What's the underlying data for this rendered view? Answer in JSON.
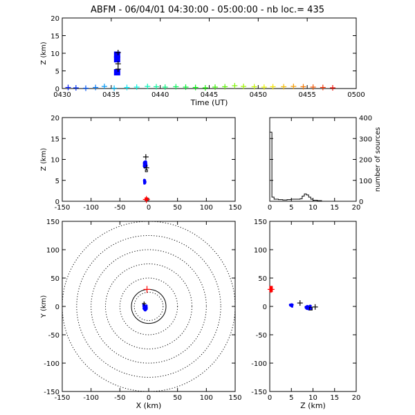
{
  "title": "ABFM - 06/04/01 04:30:00 - 05:00:00 - nb loc.=     435",
  "colors": {
    "early": "#0000ff",
    "late": "#ff0000",
    "axis": "#000000",
    "ring_dotted": "#000000"
  },
  "chart_data": [
    {
      "id": "time-height",
      "type": "scatter",
      "xlabel": "Time (UT)",
      "ylabel": "Z (km)",
      "xlim": [
        0,
        30
      ],
      "ylim": [
        0,
        20
      ],
      "x_ticks": [
        0,
        5,
        10,
        15,
        20,
        25,
        30
      ],
      "x_tick_labels": [
        "0430",
        "0435",
        "0440",
        "0445",
        "0450",
        "0455",
        "0500"
      ],
      "y_ticks": [
        0,
        5,
        10,
        15,
        20
      ],
      "squares": [
        {
          "t": 5.6,
          "z": 9.6
        },
        {
          "t": 5.6,
          "z": 8.3
        },
        {
          "t": 5.6,
          "z": 4.6
        }
      ],
      "crosses": [
        {
          "t": 5.7,
          "z": 10.2
        },
        {
          "t": 5.7,
          "z": 7.0
        },
        {
          "t": 5.7,
          "z": 5.5
        }
      ],
      "ground_t": [
        0.6,
        1.4,
        2.4,
        3.4,
        4.3,
        5.3,
        6.6,
        7.6,
        8.7,
        9.6,
        10.5,
        11.6,
        12.6,
        13.6,
        14.6,
        15.6,
        16.6,
        17.6,
        18.5,
        19.6,
        20.6,
        21.5,
        22.6,
        23.6,
        24.6,
        25.6,
        26.6,
        27.6
      ],
      "ground_z": [
        0.3,
        0.2,
        0.1,
        0.3,
        0.6,
        0.1,
        0.3,
        0.4,
        0.6,
        0.5,
        0.4,
        0.5,
        0.4,
        0.3,
        0.2,
        0.4,
        0.5,
        0.8,
        0.6,
        0.5,
        0.4,
        0.5,
        0.5,
        0.6,
        0.5,
        0.4,
        0.3,
        0.2
      ]
    },
    {
      "id": "x-z",
      "type": "scatter",
      "xlabel": "",
      "ylabel": "Z (km)",
      "xlim": [
        -150,
        150
      ],
      "ylim": [
        0,
        20
      ],
      "x_ticks": [
        -150,
        -100,
        -50,
        0,
        50,
        100,
        150
      ],
      "y_ticks": [
        0,
        5,
        10,
        15,
        20
      ],
      "ground_marker": {
        "x": -4,
        "z": 0.1
      },
      "crosses": [
        {
          "x": -5,
          "z": 10.6
        },
        {
          "x": -4,
          "z": 8.0
        }
      ]
    },
    {
      "id": "height-histogram",
      "type": "line",
      "xlabel": "",
      "ylabel": "number of sources",
      "xlim": [
        0,
        20
      ],
      "ylim": [
        0,
        400
      ],
      "x_ticks": [
        0,
        5,
        10,
        15,
        20
      ],
      "y_ticks": [
        0,
        100,
        200,
        300,
        400
      ],
      "bin_edges": [
        0,
        0.5,
        1,
        2,
        3,
        4,
        5,
        6,
        7,
        7.5,
        8,
        8.5,
        9,
        9.5,
        10,
        11,
        12,
        20
      ],
      "counts": [
        330,
        20,
        10,
        8,
        6,
        8,
        10,
        10,
        12,
        25,
        35,
        30,
        20,
        10,
        5,
        3,
        0
      ]
    },
    {
      "id": "x-y",
      "type": "scatter",
      "xlabel": "X (km)",
      "ylabel": "Y (km)",
      "xlim": [
        -150,
        150
      ],
      "ylim": [
        -150,
        150
      ],
      "x_ticks": [
        -150,
        -100,
        -50,
        0,
        50,
        100,
        150
      ],
      "y_ticks": [
        -150,
        -100,
        -50,
        0,
        50,
        100,
        150
      ],
      "range_rings_km": [
        25,
        50,
        75,
        100,
        125,
        150
      ],
      "solid_ring_km": 30,
      "center_cross": {
        "x": -3,
        "y": 30
      },
      "cluster_center": {
        "x": -6,
        "y": -2
      }
    },
    {
      "id": "z-y",
      "type": "scatter",
      "xlabel": "Z (km)",
      "ylabel": "",
      "xlim": [
        0,
        20
      ],
      "ylim": [
        -150,
        150
      ],
      "x_ticks": [
        0,
        5,
        10,
        15,
        20
      ],
      "y_ticks": [
        -150,
        -100,
        -50,
        0,
        50,
        100,
        150
      ],
      "ground_marker": {
        "z": 0.3,
        "y": 30
      },
      "clusters": [
        {
          "z": 5,
          "y": 2
        },
        {
          "z": 9,
          "y": -2
        }
      ],
      "crosses": [
        {
          "z": 7,
          "y": 6
        },
        {
          "z": 10.5,
          "y": -1
        }
      ],
      "squares": [
        {
          "z": 9.5,
          "y": -4
        }
      ]
    }
  ]
}
